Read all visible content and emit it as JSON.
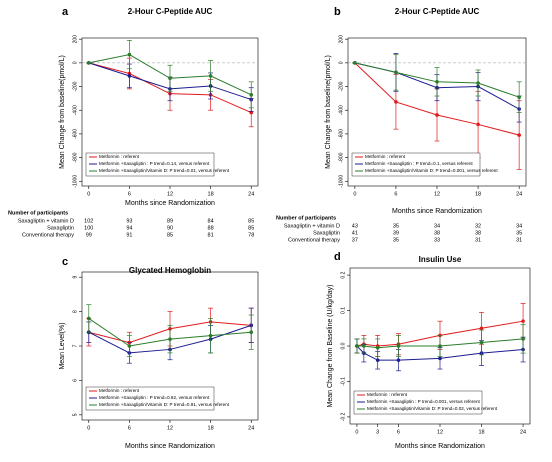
{
  "chart_data": [
    {
      "type": "line",
      "label": "a",
      "title": "2-Hour C-Peptide AUC",
      "x_label": "Months since Randomization",
      "y_label": "Mean Change from baseline(pmol/L)",
      "x": [
        0,
        6,
        12,
        18,
        24
      ],
      "xlim": [
        -1,
        25
      ],
      "xticks": [
        0,
        6,
        12,
        18,
        24
      ],
      "ylim": [
        -1040,
        210
      ],
      "yticks": [
        200,
        0,
        -200,
        -400,
        -600,
        -800,
        -1000
      ],
      "zero_line": true,
      "series": [
        {
          "name": "Metformin : referent",
          "color": "#e31a1c",
          "values": [
            0,
            -90,
            -260,
            -270,
            -420
          ],
          "errors": [
            0,
            130,
            140,
            130,
            120
          ]
        },
        {
          "name": "Metformin +Saxagliptin : P trend=0.14, versus referent",
          "color": "#1c1c8f",
          "values": [
            0,
            -110,
            -220,
            -195,
            -310
          ],
          "errors": [
            0,
            100,
            100,
            110,
            100
          ]
        },
        {
          "name": "Metformin +Saxagliptin/Vitamin D: P trend=0.01, versus referent",
          "color": "#2a7d2a",
          "values": [
            0,
            70,
            -130,
            -110,
            -270
          ],
          "errors": [
            0,
            120,
            110,
            130,
            110
          ]
        }
      ],
      "participants": {
        "title": "Number of participants",
        "rows": [
          {
            "label": "Saxagliptin + vitamin D",
            "values": [
              102,
              93,
              89,
              84,
              85
            ]
          },
          {
            "label": "Saxagliptin",
            "values": [
              100,
              94,
              90,
              88,
              85
            ]
          },
          {
            "label": "Conventional therapy",
            "values": [
              99,
              91,
              85,
              81,
              78
            ]
          }
        ]
      }
    },
    {
      "type": "line",
      "label": "b",
      "title": "2-Hour C-Peptide AUC",
      "x_label": "Months since Randomization",
      "y_label": "Mean Change from baseline(pmol/L)",
      "x": [
        0,
        6,
        12,
        18,
        24
      ],
      "xlim": [
        -1,
        25
      ],
      "xticks": [
        0,
        6,
        12,
        18,
        24
      ],
      "ylim": [
        -1040,
        210
      ],
      "yticks": [
        200,
        0,
        -200,
        -400,
        -600,
        -800,
        -1000
      ],
      "zero_line": true,
      "series": [
        {
          "name": "Metformin : referent",
          "color": "#e31a1c",
          "values": [
            0,
            -330,
            -440,
            -520,
            -610
          ],
          "errors": [
            0,
            230,
            220,
            280,
            290
          ]
        },
        {
          "name": "Metformin +Saxagliptin : P trend=0.1, versus referent",
          "color": "#1c1c8f",
          "values": [
            0,
            -80,
            -210,
            -200,
            -390
          ],
          "errors": [
            0,
            160,
            110,
            120,
            110
          ]
        },
        {
          "name": "Metformin +Saxagliptin/Vitamin D: P trend=0.001, versus referent",
          "color": "#2a7d2a",
          "values": [
            0,
            -80,
            -160,
            -170,
            -290
          ],
          "errors": [
            0,
            150,
            120,
            110,
            130
          ]
        }
      ],
      "participants": {
        "title": "Number of participants",
        "rows": [
          {
            "label": "Saxagliptin + vitamin D",
            "values": [
              43,
              35,
              34,
              32,
              34
            ]
          },
          {
            "label": "Saxagliptin",
            "values": [
              41,
              39,
              38,
              38,
              35
            ]
          },
          {
            "label": "Conventional therapy",
            "values": [
              37,
              35,
              33,
              31,
              31
            ]
          }
        ]
      }
    },
    {
      "type": "line",
      "label": "c",
      "title": "Glycated Hemoglobin",
      "x_label": "Months since Randomization",
      "y_label": "Mean Level(%)",
      "x": [
        0,
        6,
        12,
        18,
        24
      ],
      "xlim": [
        -1,
        25
      ],
      "xticks": [
        0,
        6,
        12,
        18,
        24
      ],
      "ylim": [
        4.85,
        9.15
      ],
      "yticks": [
        5,
        6,
        7,
        8,
        9
      ],
      "zero_line": false,
      "series": [
        {
          "name": "Metformin : referent",
          "color": "#e31a1c",
          "values": [
            7.4,
            7.1,
            7.5,
            7.7,
            7.6
          ],
          "errors": [
            0.4,
            0.3,
            0.5,
            0.4,
            0.5
          ]
        },
        {
          "name": "Metformin +Saxagliptin : P trend=0.82, versus referent",
          "color": "#1c1c8f",
          "values": [
            7.4,
            6.8,
            6.9,
            7.2,
            7.6
          ],
          "errors": [
            0.3,
            0.3,
            0.3,
            0.4,
            0.5
          ]
        },
        {
          "name": "Metformin +Saxagliptin/Vitamin D: P trend=0.91, versus referent",
          "color": "#2a7d2a",
          "values": [
            7.8,
            7.0,
            7.2,
            7.3,
            7.4
          ],
          "errors": [
            0.4,
            0.3,
            0.4,
            0.5,
            0.5
          ]
        }
      ]
    },
    {
      "type": "line",
      "label": "d",
      "title": "Insulin Use",
      "x_label": "Months since Randomization",
      "y_label": "Mean Change from Baseline (U/kg/day)",
      "x": [
        0,
        1,
        3,
        6,
        12,
        18,
        24
      ],
      "xlim": [
        -1,
        25
      ],
      "xticks": [
        0,
        3,
        6,
        12,
        18,
        24
      ],
      "ylim": [
        -0.22,
        0.22
      ],
      "yticks": [
        0.2,
        0.1,
        {
          "value": 0,
          "label": "0.0"
        },
        -0.1,
        -0.2
      ],
      "zero_line": false,
      "series": [
        {
          "name": "Metformin : referent",
          "color": "#e31a1c",
          "values": [
            0,
            0.005,
            0,
            0.005,
            0.03,
            0.05,
            0.07
          ],
          "errors": [
            0.02,
            0.025,
            0.03,
            0.03,
            0.04,
            0.045,
            0.05
          ]
        },
        {
          "name": "Metformin +Saxagliptin : P trend=0.001, versus referent",
          "color": "#1c1c8f",
          "values": [
            0,
            -0.02,
            -0.04,
            -0.04,
            -0.035,
            -0.02,
            -0.01
          ],
          "errors": [
            0.02,
            0.025,
            0.025,
            0.03,
            0.03,
            0.035,
            0.035
          ]
        },
        {
          "name": "Metformin +Saxagliptin/Vitamin D: P trend=0.02, versus referent",
          "color": "#2a7d2a",
          "values": [
            0,
            0,
            -0.005,
            0,
            0,
            0.01,
            0.02
          ],
          "errors": [
            0.02,
            0.02,
            0.025,
            0.03,
            0.03,
            0.035,
            0.04
          ]
        }
      ]
    }
  ]
}
